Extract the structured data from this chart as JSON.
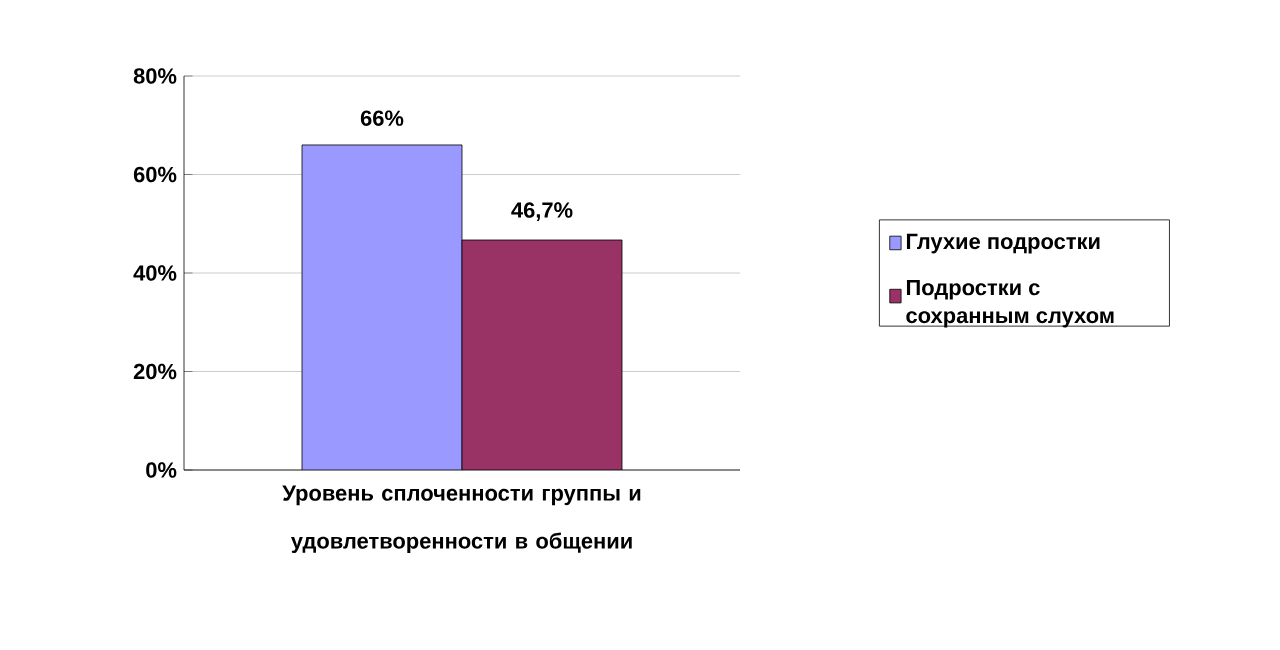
{
  "chart_data": {
    "type": "bar",
    "categories": [
      "Уровень сплоченности группы и удовлетворенности в общении"
    ],
    "series": [
      {
        "name": "Глухие подростки",
        "color": "#9999ff",
        "values": [
          66
        ],
        "value_labels": [
          "66%"
        ]
      },
      {
        "name": "Подростки с сохранным слухом",
        "color": "#993366",
        "values": [
          46.7
        ],
        "value_labels": [
          "46,7%"
        ]
      }
    ],
    "ylim": [
      0,
      80
    ],
    "yticks": [
      {
        "value": 0,
        "label": "0%"
      },
      {
        "value": 20,
        "label": "20%"
      },
      {
        "value": 40,
        "label": "40%"
      },
      {
        "value": 60,
        "label": "60%"
      },
      {
        "value": 80,
        "label": "80%"
      }
    ],
    "grid": "y",
    "legend": "right"
  }
}
